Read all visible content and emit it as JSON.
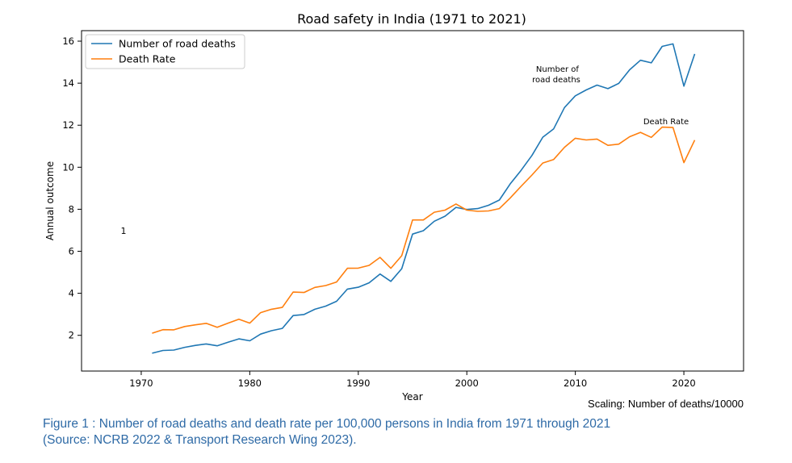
{
  "chart_data": {
    "type": "line",
    "title": "Road safety in India (1971 to 2021)",
    "xlabel": "Year",
    "ylabel": "Annual outcome",
    "xlim": [
      1964.5,
      2025.5
    ],
    "ylim": [
      0.3,
      16.5
    ],
    "xticks": [
      1970,
      1980,
      1990,
      2000,
      2010,
      2020
    ],
    "yticks": [
      2,
      4,
      6,
      8,
      10,
      12,
      14,
      16
    ],
    "grid": false,
    "legend_position": "upper-left",
    "x": [
      1971,
      1972,
      1973,
      1974,
      1975,
      1976,
      1977,
      1978,
      1979,
      1980,
      1981,
      1982,
      1983,
      1984,
      1985,
      1986,
      1987,
      1988,
      1989,
      1990,
      1991,
      1992,
      1993,
      1994,
      1995,
      1996,
      1997,
      1998,
      1999,
      2000,
      2001,
      2002,
      2003,
      2004,
      2005,
      2006,
      2007,
      2008,
      2009,
      2010,
      2011,
      2012,
      2013,
      2014,
      2015,
      2016,
      2017,
      2018,
      2019,
      2020,
      2021
    ],
    "series": [
      {
        "name": "Number of road deaths",
        "color": "#1f77b4",
        "values": [
          1.15,
          1.28,
          1.3,
          1.43,
          1.52,
          1.59,
          1.5,
          1.67,
          1.83,
          1.74,
          2.06,
          2.22,
          2.33,
          2.94,
          2.99,
          3.24,
          3.39,
          3.62,
          4.2,
          4.29,
          4.5,
          4.92,
          4.57,
          5.17,
          6.82,
          6.98,
          7.43,
          7.67,
          8.09,
          7.99,
          8.03,
          8.19,
          8.44,
          9.21,
          9.85,
          10.56,
          11.43,
          11.83,
          12.84,
          13.4,
          13.68,
          13.91,
          13.74,
          13.99,
          14.64,
          15.09,
          14.97,
          15.75,
          15.87,
          13.86,
          15.39
        ]
      },
      {
        "name": "Death Rate",
        "color": "#ff7f0e",
        "values": [
          2.1,
          2.27,
          2.26,
          2.42,
          2.5,
          2.57,
          2.38,
          2.58,
          2.77,
          2.58,
          3.08,
          3.24,
          3.33,
          4.06,
          4.04,
          4.28,
          4.37,
          4.54,
          5.19,
          5.2,
          5.33,
          5.71,
          5.19,
          5.79,
          7.49,
          7.49,
          7.86,
          7.96,
          8.25,
          7.96,
          7.9,
          7.92,
          8.03,
          8.54,
          9.09,
          9.63,
          10.2,
          10.37,
          10.95,
          11.38,
          11.3,
          11.34,
          11.04,
          11.1,
          11.45,
          11.66,
          11.42,
          11.91,
          11.89,
          10.22,
          11.29
        ]
      }
    ],
    "annotations": [
      {
        "lines": [
          "Number of",
          "road deaths"
        ]
      },
      {
        "lines": [
          "Death Rate"
        ]
      },
      {
        "lines": [
          "1"
        ]
      }
    ]
  },
  "footer": {
    "scaling": "Scaling: Number of deaths/10000",
    "caption_line1": "Figure 1 : Number of road deaths and death rate per 100,000 persons in India from 1971 through 2021",
    "caption_line2": "(Source: NCRB 2022  & Transport Research Wing 2023)."
  }
}
